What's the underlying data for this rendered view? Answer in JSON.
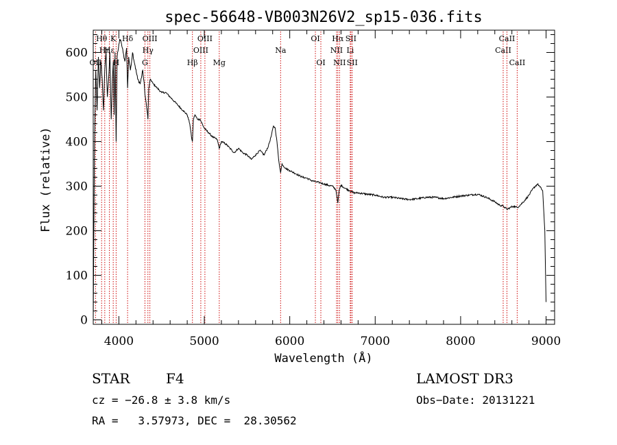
{
  "chart_data": {
    "type": "line",
    "title": "spec-56648-VB003N26V2_sp15-036.fits",
    "xlabel": "Wavelength (Å)",
    "ylabel": "Flux (relative)",
    "xlim": [
      3700,
      9100
    ],
    "ylim": [
      -10,
      650
    ],
    "x_ticks": [
      4000,
      5000,
      6000,
      7000,
      8000,
      9000
    ],
    "y_ticks": [
      0,
      100,
      200,
      300,
      400,
      500,
      600
    ],
    "grid": false,
    "series": [
      {
        "name": "spectrum",
        "x": [
          3700,
          3715,
          3730,
          3745,
          3760,
          3775,
          3790,
          3805,
          3820,
          3835,
          3850,
          3865,
          3880,
          3895,
          3910,
          3925,
          3935,
          3945,
          3955,
          3968,
          3980,
          3995,
          4010,
          4030,
          4050,
          4070,
          4090,
          4102,
          4115,
          4135,
          4160,
          4190,
          4220,
          4250,
          4280,
          4310,
          4330,
          4340,
          4350,
          4370,
          4400,
          4450,
          4500,
          4550,
          4600,
          4650,
          4700,
          4750,
          4800,
          4830,
          4850,
          4861,
          4872,
          4890,
          4920,
          4950,
          5000,
          5050,
          5100,
          5150,
          5175,
          5200,
          5250,
          5300,
          5350,
          5400,
          5450,
          5500,
          5550,
          5600,
          5650,
          5700,
          5750,
          5780,
          5810,
          5830,
          5850,
          5870,
          5893,
          5910,
          5950,
          6000,
          6050,
          6100,
          6150,
          6200,
          6250,
          6300,
          6350,
          6400,
          6450,
          6500,
          6540,
          6563,
          6580,
          6600,
          6650,
          6700,
          6750,
          6800,
          6900,
          7000,
          7100,
          7200,
          7300,
          7400,
          7500,
          7600,
          7700,
          7800,
          7900,
          8000,
          8100,
          8200,
          8300,
          8400,
          8450,
          8500,
          8542,
          8580,
          8620,
          8662,
          8700,
          8750,
          8800,
          8850,
          8900,
          8930,
          8960,
          8985,
          9000
        ],
        "values": [
          0,
          400,
          560,
          470,
          590,
          520,
          580,
          540,
          470,
          560,
          600,
          500,
          540,
          600,
          450,
          540,
          580,
          460,
          600,
          400,
          590,
          610,
          630,
          620,
          600,
          580,
          610,
          520,
          590,
          560,
          600,
          570,
          540,
          530,
          560,
          500,
          470,
          450,
          520,
          540,
          530,
          520,
          510,
          510,
          500,
          490,
          480,
          470,
          460,
          440,
          410,
          400,
          450,
          460,
          450,
          450,
          430,
          420,
          410,
          405,
          385,
          400,
          395,
          385,
          375,
          385,
          375,
          370,
          360,
          370,
          380,
          370,
          390,
          410,
          435,
          430,
          400,
          360,
          330,
          350,
          340,
          335,
          330,
          325,
          320,
          318,
          313,
          310,
          308,
          305,
          302,
          300,
          292,
          262,
          292,
          302,
          295,
          290,
          285,
          285,
          282,
          280,
          275,
          275,
          272,
          270,
          272,
          275,
          275,
          272,
          275,
          278,
          280,
          282,
          275,
          265,
          258,
          255,
          248,
          252,
          255,
          252,
          258,
          268,
          280,
          295,
          305,
          298,
          290,
          200,
          40
        ]
      }
    ],
    "lines": [
      {
        "name": "Hθ",
        "wavelength": 3798,
        "row": 0
      },
      {
        "name": "OII",
        "wavelength": 3727,
        "row": 2
      },
      {
        "name": "Hη",
        "wavelength": 3835,
        "row": 1
      },
      {
        "name": "Hε",
        "wavelength": 3889,
        "row": 1
      },
      {
        "name": "K",
        "wavelength": 3934,
        "row": 0
      },
      {
        "name": "H",
        "wavelength": 3968,
        "row": 2
      },
      {
        "name": "Hδ",
        "wavelength": 4102,
        "row": 0
      },
      {
        "name": "Hγ",
        "wavelength": 4340,
        "row": 1
      },
      {
        "name": "G",
        "wavelength": 4305,
        "row": 2
      },
      {
        "name": "OIII",
        "wavelength": 4363,
        "row": 0
      },
      {
        "name": "Hβ",
        "wavelength": 4861,
        "row": 2
      },
      {
        "name": "OIII",
        "wavelength": 4959,
        "row": 1
      },
      {
        "name": "OIII",
        "wavelength": 5007,
        "row": 0
      },
      {
        "name": "Mg",
        "wavelength": 5175,
        "row": 2
      },
      {
        "name": "Na",
        "wavelength": 5893,
        "row": 1
      },
      {
        "name": "OI",
        "wavelength": 6300,
        "row": 0
      },
      {
        "name": "OI",
        "wavelength": 6364,
        "row": 2
      },
      {
        "name": "NII",
        "wavelength": 6548,
        "row": 1
      },
      {
        "name": "Hα",
        "wavelength": 6563,
        "row": 0
      },
      {
        "name": "NII",
        "wavelength": 6583,
        "row": 2
      },
      {
        "name": "SII",
        "wavelength": 6716,
        "row": 0
      },
      {
        "name": "Li",
        "wavelength": 6708,
        "row": 1
      },
      {
        "name": "SII",
        "wavelength": 6731,
        "row": 2
      },
      {
        "name": "CaII",
        "wavelength": 8498,
        "row": 1
      },
      {
        "name": "CaII",
        "wavelength": 8542,
        "row": 0
      },
      {
        "name": "CaII",
        "wavelength": 8662,
        "row": 2
      }
    ],
    "line_color": "#cc0000",
    "plot_color": "#000000"
  },
  "info": {
    "object_type": "STAR",
    "subclass": "F4",
    "survey": "LAMOST DR3",
    "cz": "cz = −26.8 ± 3.8 km/s",
    "obs_date": "Obs−Date: 20131221",
    "radec": "RA =   3.57973, DEC =  28.30562"
  }
}
